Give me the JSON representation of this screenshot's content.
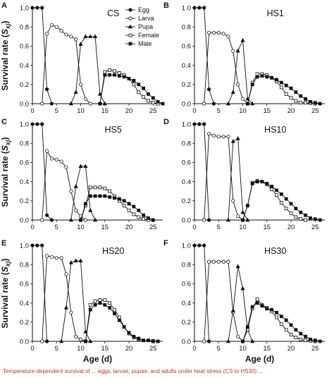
{
  "figure": {
    "ylabel_main": "Survival rate (",
    "ylabel_sym": "S",
    "ylabel_sub": "xj",
    "ylabel_end": ")",
    "xlabel": "Age (d)",
    "caption": "Temperature‑dependent survival of ... eggs, larvae, pupae, and adults under heat stress (CS to HS30) ..."
  },
  "legend": [
    "Egg",
    "Larva",
    "Pupa",
    "Female",
    "Male"
  ],
  "chart_data": [
    {
      "type": "line",
      "letter": "A",
      "title": "CS",
      "xlabel": "",
      "ylabel": "Survival rate (Sxj)",
      "xlim": [
        0,
        27
      ],
      "ylim": [
        0,
        1.0
      ],
      "xticks": [
        0,
        5,
        10,
        15,
        20,
        25
      ],
      "yticks": [
        0.0,
        0.2,
        0.4,
        0.6,
        0.8,
        1.0
      ],
      "series": [
        {
          "name": "Egg",
          "x": [
            0,
            1,
            2,
            3,
            4
          ],
          "y": [
            1.0,
            1.0,
            1.0,
            0.15,
            0
          ]
        },
        {
          "name": "Larva",
          "x": [
            2,
            3,
            4,
            5,
            6,
            7,
            8,
            9,
            10,
            11,
            12
          ],
          "y": [
            0,
            0.73,
            0.82,
            0.8,
            0.76,
            0.72,
            0.7,
            0.67,
            0.2,
            0.05,
            0
          ]
        },
        {
          "name": "Pupa",
          "x": [
            8,
            9,
            10,
            11,
            12,
            13,
            14,
            15
          ],
          "y": [
            0,
            0.12,
            0.62,
            0.7,
            0.7,
            0.7,
            0.1,
            0
          ]
        },
        {
          "name": "Female",
          "x": [
            14,
            15,
            16,
            17,
            18,
            19,
            20,
            21,
            22,
            23,
            24,
            25,
            26
          ],
          "y": [
            0,
            0.33,
            0.35,
            0.34,
            0.32,
            0.3,
            0.26,
            0.2,
            0.12,
            0.07,
            0.03,
            0.01,
            0
          ]
        },
        {
          "name": "Male",
          "x": [
            14,
            15,
            16,
            17,
            18,
            19,
            20,
            21,
            22,
            23,
            24,
            25,
            26,
            27
          ],
          "y": [
            0,
            0.3,
            0.3,
            0.3,
            0.29,
            0.28,
            0.26,
            0.24,
            0.2,
            0.16,
            0.1,
            0.06,
            0.02,
            0
          ]
        }
      ]
    },
    {
      "type": "line",
      "letter": "B",
      "title": "HS1",
      "xlabel": "",
      "ylabel": "",
      "xlim": [
        0,
        27
      ],
      "ylim": [
        0,
        1.0
      ],
      "xticks": [
        0,
        5,
        10,
        15,
        20,
        25
      ],
      "yticks": [
        0.0,
        0.2,
        0.4,
        0.6,
        0.8,
        1.0
      ],
      "series": [
        {
          "name": "Egg",
          "x": [
            0,
            1,
            2,
            3,
            4
          ],
          "y": [
            1.0,
            1.0,
            1.0,
            0.15,
            0
          ]
        },
        {
          "name": "Larva",
          "x": [
            2,
            3,
            4,
            5,
            6,
            7,
            8,
            9,
            10,
            11
          ],
          "y": [
            0,
            0.74,
            0.74,
            0.74,
            0.73,
            0.7,
            0.55,
            0.2,
            0.05,
            0
          ]
        },
        {
          "name": "Pupa",
          "x": [
            7,
            8,
            9,
            10,
            11,
            12
          ],
          "y": [
            0,
            0.12,
            0.55,
            0.66,
            0.05,
            0
          ]
        },
        {
          "name": "Female",
          "x": [
            11,
            12,
            13,
            14,
            15,
            16,
            17,
            18,
            19,
            20,
            21,
            22,
            23,
            24,
            25
          ],
          "y": [
            0,
            0.22,
            0.31,
            0.31,
            0.3,
            0.27,
            0.23,
            0.17,
            0.1,
            0.06,
            0.03,
            0.01,
            0.01,
            0.005,
            0
          ]
        },
        {
          "name": "Male",
          "x": [
            11,
            12,
            13,
            14,
            15,
            16,
            17,
            18,
            19,
            20,
            21,
            22,
            23,
            24,
            25,
            26
          ],
          "y": [
            0,
            0.2,
            0.28,
            0.29,
            0.28,
            0.27,
            0.25,
            0.22,
            0.19,
            0.16,
            0.12,
            0.08,
            0.05,
            0.02,
            0.01,
            0
          ]
        }
      ]
    },
    {
      "type": "line",
      "letter": "C",
      "title": "HS5",
      "xlabel": "",
      "ylabel": "Survival rate (Sxj)",
      "xlim": [
        0,
        27
      ],
      "ylim": [
        0,
        1.0
      ],
      "xticks": [
        0,
        5,
        10,
        15,
        20,
        25
      ],
      "yticks": [
        0.0,
        0.2,
        0.4,
        0.6,
        0.8,
        1.0
      ],
      "series": [
        {
          "name": "Egg",
          "x": [
            0,
            1,
            2,
            3,
            4
          ],
          "y": [
            1.0,
            1.0,
            1.0,
            0.05,
            0
          ]
        },
        {
          "name": "Larva",
          "x": [
            2,
            3,
            4,
            5,
            6,
            7,
            8,
            9,
            10,
            11
          ],
          "y": [
            0,
            0.72,
            0.64,
            0.63,
            0.61,
            0.55,
            0.3,
            0.1,
            0.04,
            0
          ]
        },
        {
          "name": "Pupa",
          "x": [
            8,
            9,
            10,
            11,
            12,
            13
          ],
          "y": [
            0,
            0.35,
            0.56,
            0.56,
            0.1,
            0
          ]
        },
        {
          "name": "Female",
          "x": [
            10,
            11,
            12,
            13,
            14,
            15,
            16,
            17,
            18,
            19,
            20,
            21,
            22,
            23,
            24
          ],
          "y": [
            0,
            0.15,
            0.34,
            0.34,
            0.34,
            0.33,
            0.3,
            0.25,
            0.2,
            0.15,
            0.1,
            0.06,
            0.03,
            0.01,
            0
          ]
        },
        {
          "name": "Male",
          "x": [
            10,
            11,
            12,
            13,
            14,
            15,
            16,
            17,
            18,
            19,
            20,
            21,
            22,
            23,
            24,
            25
          ],
          "y": [
            0,
            0.17,
            0.25,
            0.25,
            0.25,
            0.25,
            0.24,
            0.23,
            0.22,
            0.2,
            0.17,
            0.14,
            0.1,
            0.05,
            0.02,
            0
          ]
        }
      ]
    },
    {
      "type": "line",
      "letter": "D",
      "title": "HS10",
      "xlabel": "",
      "ylabel": "",
      "xlim": [
        0,
        27
      ],
      "ylim": [
        0,
        1.0
      ],
      "xticks": [
        0,
        5,
        10,
        15,
        20,
        25
      ],
      "yticks": [
        0.0,
        0.2,
        0.4,
        0.6,
        0.8,
        1.0
      ],
      "series": [
        {
          "name": "Egg",
          "x": [
            0,
            1,
            2,
            3
          ],
          "y": [
            1.0,
            1.0,
            1.0,
            0
          ]
        },
        {
          "name": "Larva",
          "x": [
            2,
            3,
            4,
            5,
            6,
            7,
            8,
            9,
            10
          ],
          "y": [
            0,
            0.9,
            0.88,
            0.87,
            0.87,
            0.87,
            0.2,
            0.04,
            0
          ]
        },
        {
          "name": "Pupa",
          "x": [
            7,
            8,
            9,
            10,
            11
          ],
          "y": [
            0,
            0.82,
            0.85,
            0.08,
            0
          ]
        },
        {
          "name": "Female",
          "x": [
            10,
            11,
            12,
            13,
            14,
            15,
            16,
            17,
            18,
            19,
            20,
            21,
            22,
            23
          ],
          "y": [
            0,
            0.15,
            0.39,
            0.41,
            0.4,
            0.37,
            0.32,
            0.26,
            0.18,
            0.12,
            0.07,
            0.03,
            0.01,
            0
          ]
        },
        {
          "name": "Male",
          "x": [
            10,
            11,
            12,
            13,
            14,
            15,
            16,
            17,
            18,
            19,
            20,
            21,
            22,
            23,
            24,
            25,
            26
          ],
          "y": [
            0,
            0.15,
            0.38,
            0.4,
            0.4,
            0.38,
            0.35,
            0.31,
            0.27,
            0.22,
            0.17,
            0.12,
            0.08,
            0.05,
            0.02,
            0.01,
            0
          ]
        }
      ]
    },
    {
      "type": "line",
      "letter": "E",
      "title": "HS20",
      "xlabel": "Age (d)",
      "ylabel": "Survival rate (Sxj)",
      "xlim": [
        0,
        27
      ],
      "ylim": [
        0,
        1.0
      ],
      "xticks": [
        0,
        5,
        10,
        15,
        20,
        25
      ],
      "yticks": [
        0.0,
        0.2,
        0.4,
        0.6,
        0.8,
        1.0
      ],
      "series": [
        {
          "name": "Egg",
          "x": [
            0,
            1,
            2,
            3
          ],
          "y": [
            1.0,
            1.0,
            1.0,
            0
          ]
        },
        {
          "name": "Larva",
          "x": [
            2,
            3,
            4,
            5,
            6,
            7,
            8,
            9,
            10,
            11
          ],
          "y": [
            0,
            0.89,
            0.88,
            0.87,
            0.87,
            0.7,
            0.3,
            0.05,
            0.02,
            0
          ]
        },
        {
          "name": "Pupa",
          "x": [
            6,
            7,
            8,
            9,
            10,
            11,
            12
          ],
          "y": [
            0,
            0.35,
            0.82,
            0.84,
            0.84,
            0.1,
            0
          ]
        },
        {
          "name": "Female",
          "x": [
            11,
            12,
            13,
            14,
            15,
            16,
            17,
            18,
            19,
            20,
            21,
            22,
            23,
            24,
            25
          ],
          "y": [
            0,
            0.38,
            0.42,
            0.43,
            0.43,
            0.4,
            0.33,
            0.25,
            0.15,
            0.08,
            0.04,
            0.02,
            0.01,
            0.01,
            0
          ]
        },
        {
          "name": "Male",
          "x": [
            11,
            12,
            13,
            14,
            15,
            16,
            17,
            18,
            19,
            20,
            21,
            22,
            23,
            24,
            25,
            26
          ],
          "y": [
            0,
            0.33,
            0.38,
            0.4,
            0.38,
            0.35,
            0.29,
            0.22,
            0.15,
            0.09,
            0.05,
            0.03,
            0.01,
            0.01,
            0.005,
            0
          ]
        }
      ]
    },
    {
      "type": "line",
      "letter": "F",
      "title": "HS30",
      "xlabel": "Age (d)",
      "ylabel": "",
      "xlim": [
        0,
        27
      ],
      "ylim": [
        0,
        1.0
      ],
      "xticks": [
        0,
        5,
        10,
        15,
        20,
        25
      ],
      "yticks": [
        0.0,
        0.2,
        0.4,
        0.6,
        0.8,
        1.0
      ],
      "series": [
        {
          "name": "Egg",
          "x": [
            0,
            1,
            2,
            3
          ],
          "y": [
            1.0,
            1.0,
            1.0,
            0
          ]
        },
        {
          "name": "Larva",
          "x": [
            2,
            3,
            4,
            5,
            6,
            7,
            8,
            9,
            10
          ],
          "y": [
            0,
            0.83,
            0.83,
            0.83,
            0.83,
            0.83,
            0.3,
            0.05,
            0
          ]
        },
        {
          "name": "Pupa",
          "x": [
            7,
            8,
            9,
            10,
            11,
            12
          ],
          "y": [
            0,
            0.32,
            0.78,
            0.55,
            0.12,
            0
          ]
        },
        {
          "name": "Female",
          "x": [
            10,
            11,
            12,
            13,
            14,
            15,
            16,
            17,
            18,
            19,
            20,
            21,
            22,
            23,
            24,
            25
          ],
          "y": [
            0,
            0.12,
            0.34,
            0.44,
            0.38,
            0.35,
            0.31,
            0.25,
            0.18,
            0.12,
            0.07,
            0.04,
            0.02,
            0.01,
            0.005,
            0
          ]
        },
        {
          "name": "Male",
          "x": [
            10,
            11,
            12,
            13,
            14,
            15,
            16,
            17,
            18,
            19,
            20,
            21,
            22,
            23,
            24,
            25,
            26
          ],
          "y": [
            0,
            0.15,
            0.36,
            0.4,
            0.37,
            0.34,
            0.33,
            0.3,
            0.26,
            0.22,
            0.17,
            0.12,
            0.08,
            0.05,
            0.02,
            0.01,
            0
          ]
        }
      ]
    }
  ]
}
